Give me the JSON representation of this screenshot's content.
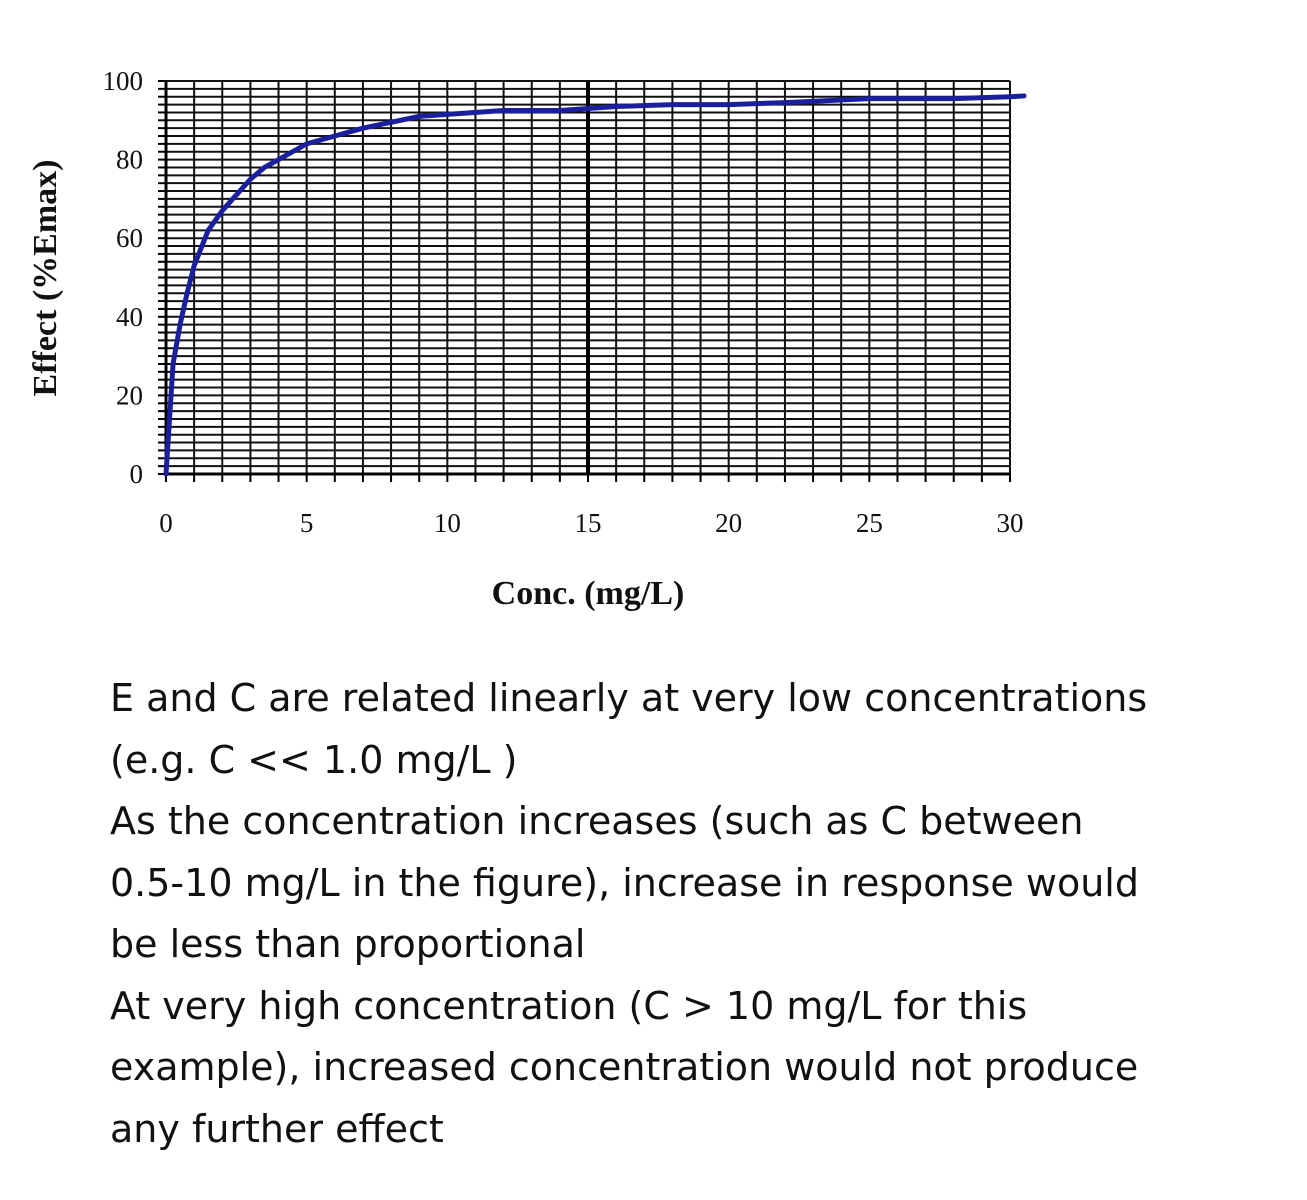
{
  "chart_data": {
    "type": "line",
    "xlabel": "Conc. (mg/L)",
    "ylabel": "Effect (%Emax)",
    "xlim": [
      0,
      30
    ],
    "ylim": [
      0,
      100
    ],
    "x_ticks": [
      "0",
      "5",
      "10",
      "15",
      "20",
      "25",
      "30"
    ],
    "y_ticks": [
      "0",
      "20",
      "40",
      "60",
      "80",
      "100"
    ],
    "grid": true,
    "series": [
      {
        "color": "#1b1f9e",
        "x": [
          0,
          0.25,
          0.5,
          0.75,
          1,
          1.5,
          2,
          2.5,
          3,
          3.5,
          4,
          5,
          6,
          7,
          8,
          9,
          10,
          12,
          14,
          16,
          18,
          20,
          22,
          25,
          28,
          30,
          30.5
        ],
        "y": [
          0,
          28,
          38,
          46,
          53,
          62,
          67,
          71,
          75,
          78,
          80,
          84,
          86,
          88,
          89.5,
          91,
          91.5,
          92.5,
          92.5,
          93.5,
          94,
          94,
          94.5,
          95.5,
          95.5,
          96,
          96.2
        ]
      }
    ],
    "reference_line_x": 15
  },
  "caption": {
    "lines": [
      "E and C are related linearly at very low concentrations",
      "(e.g. C << 1.0 mg/L )",
      "As the concentration increases (such as C between",
      "0.5-10 mg/L in the figure), increase in response would",
      "be less than proportional",
      "At very high concentration (C > 10 mg/L for this",
      "example), increased concentration would not produce",
      "any further effect"
    ]
  }
}
